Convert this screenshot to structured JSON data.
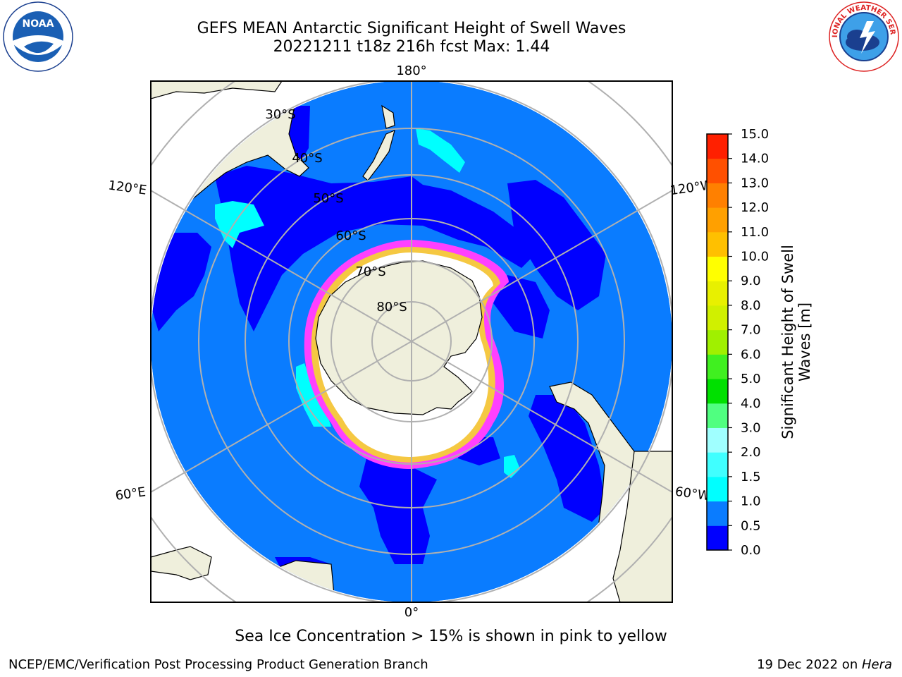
{
  "header": {
    "title_line1": "GEFS MEAN Antarctic Significant Height of Swell Waves",
    "title_line2": "20221211 t18z 216h fcst   Max: 1.44"
  },
  "logos": {
    "left": "noaa-logo",
    "right": "nws-logo",
    "left_text": "NOAA",
    "right_text": "NATIONAL WEATHER SERVICE"
  },
  "map": {
    "projection": "south-polar-stereographic",
    "meridian_labels": [
      "180°",
      "120°E",
      "120°W",
      "60°E",
      "60°W",
      "0°"
    ],
    "parallel_labels": [
      "30°S",
      "40°S",
      "50°S",
      "60°S",
      "70°S",
      "80°S"
    ],
    "colors": {
      "ocean_swell": "#0a7cff",
      "low_swell": "#0000ff",
      "mid_swell": "#00ffff",
      "land": "#efefdc",
      "sea_ice": "#ff40ff",
      "ice_core": "#ffffff",
      "ice_yellow": "#f5c842"
    }
  },
  "colorbar": {
    "title_line1": "Significant Height of Swell",
    "title_line2": "Waves [m]",
    "ticks": [
      "15.0",
      "14.0",
      "13.0",
      "12.0",
      "11.0",
      "10.0",
      "9.0",
      "8.0",
      "7.0",
      "6.0",
      "5.0",
      "4.0",
      "3.0",
      "2.0",
      "1.5",
      "1.0",
      "0.5",
      "0.0"
    ],
    "bins": [
      {
        "from": "0.0",
        "color": "#0000ff"
      },
      {
        "from": "0.5",
        "color": "#0a7cff"
      },
      {
        "from": "1.0",
        "color": "#00ffff"
      },
      {
        "from": "1.5",
        "color": "#40ffff"
      },
      {
        "from": "2.0",
        "color": "#a0ffff"
      },
      {
        "from": "3.0",
        "color": "#50ff80"
      },
      {
        "from": "4.0",
        "color": "#00e000"
      },
      {
        "from": "5.0",
        "color": "#40f020"
      },
      {
        "from": "6.0",
        "color": "#a0f000"
      },
      {
        "from": "7.0",
        "color": "#d0f000"
      },
      {
        "from": "8.0",
        "color": "#e8f000"
      },
      {
        "from": "9.0",
        "color": "#ffff00"
      },
      {
        "from": "10.0",
        "color": "#ffc000"
      },
      {
        "from": "11.0",
        "color": "#ffa000"
      },
      {
        "from": "12.0",
        "color": "#ff8000"
      },
      {
        "from": "13.0",
        "color": "#ff5000"
      },
      {
        "from": "14.0",
        "color": "#ff2000"
      }
    ]
  },
  "caption": "Sea Ice Concentration > 15% is shown in pink to yellow",
  "footer": {
    "left": "NCEP/EMC/Verification Post Processing Product Generation Branch",
    "right_date": "19 Dec 2022 on ",
    "right_host": "Hera"
  }
}
